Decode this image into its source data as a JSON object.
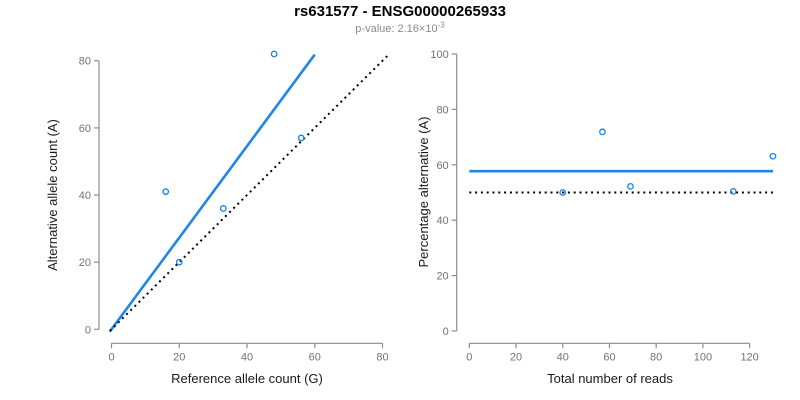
{
  "header": {
    "title": "rs631577 - ENSG00000265933",
    "pvalue_prefix": "p-value: 2.16×10",
    "pvalue_exponent": "-3"
  },
  "colors": {
    "accent_blue": "#1E86E6",
    "identity_black": "#000000",
    "axis_gray": "#8C8C8C",
    "tick_label_gray": "#737373",
    "axis_title_color": "#1A1A1A",
    "title_black": "#000000",
    "subtitle_gray": "#8A8A8A",
    "background": "#FFFFFF"
  },
  "chart_data": [
    {
      "type": "scatter",
      "panel": "left",
      "title": "rs631577 - ENSG00000265933",
      "subtitle": "p-value: 2.16×10^-3",
      "xlabel": "Reference allele count (G)",
      "ylabel": "Alternative allele count (A)",
      "xlim": [
        0,
        80
      ],
      "ylim": [
        0,
        80
      ],
      "xticks": [
        0,
        20,
        40,
        60,
        80
      ],
      "yticks": [
        0,
        20,
        40,
        60,
        80
      ],
      "grid": false,
      "legend": false,
      "marker": "open-circle",
      "points": [
        {
          "x": 16,
          "y": 41
        },
        {
          "x": 20,
          "y": 20
        },
        {
          "x": 33,
          "y": 36
        },
        {
          "x": 48,
          "y": 82
        },
        {
          "x": 56,
          "y": 57
        }
      ],
      "lines": [
        {
          "name": "fit-line",
          "kind": "ab",
          "slope": 1.364,
          "intercept": 0,
          "x_range": [
            -0.5,
            60
          ],
          "style": "solid",
          "color": "accent_blue"
        },
        {
          "name": "identity-line",
          "kind": "ab",
          "slope": 1,
          "intercept": 0,
          "x_range": [
            -0.5,
            81.8
          ],
          "style": "dotted",
          "color": "identity_black"
        }
      ]
    },
    {
      "type": "scatter",
      "panel": "right",
      "xlabel": "Total number of reads",
      "ylabel": "Percentage alternative (A)",
      "xlim": [
        0,
        130
      ],
      "ylim": [
        0,
        100
      ],
      "xticks": [
        0,
        20,
        40,
        60,
        80,
        100,
        120
      ],
      "yticks": [
        0,
        20,
        40,
        60,
        80,
        100
      ],
      "grid": false,
      "legend": false,
      "marker": "open-circle",
      "points": [
        {
          "x": 40,
          "y": 50.0
        },
        {
          "x": 57,
          "y": 71.9
        },
        {
          "x": 69,
          "y": 52.2
        },
        {
          "x": 113,
          "y": 50.4
        },
        {
          "x": 130,
          "y": 63.1
        }
      ],
      "lines": [
        {
          "name": "mean-percentage-line",
          "kind": "h",
          "y": 57.7,
          "style": "solid",
          "color": "accent_blue"
        },
        {
          "name": "null-50-percent-line",
          "kind": "h",
          "y": 50,
          "style": "dotted",
          "color": "identity_black"
        }
      ]
    }
  ]
}
